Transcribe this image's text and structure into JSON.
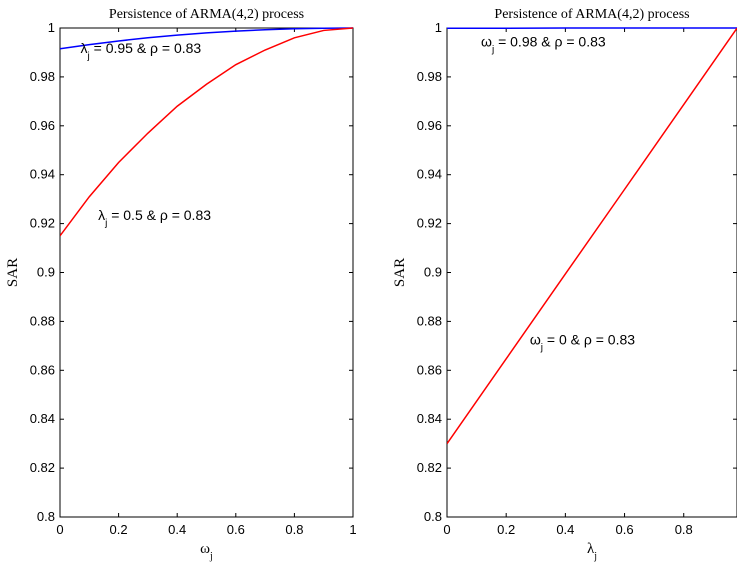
{
  "chart_data": [
    {
      "type": "line",
      "title": "Persistence of ARMA(4,2) process",
      "xlabel": "ω",
      "xlabel_sub": "j",
      "ylabel": "SAR",
      "xlim": [
        0,
        1
      ],
      "ylim": [
        0.8,
        1
      ],
      "xticks": [
        0,
        0.2,
        0.4,
        0.6,
        0.8,
        1
      ],
      "xtick_labels": [
        "0",
        "0.2",
        "0.4",
        "0.6",
        "0.8",
        "1"
      ],
      "yticks": [
        0.8,
        0.82,
        0.84,
        0.86,
        0.88,
        0.9,
        0.92,
        0.94,
        0.96,
        0.98,
        1
      ],
      "ytick_labels": [
        "0.8",
        "0.82",
        "0.84",
        "0.86",
        "0.88",
        "0.9",
        "0.92",
        "0.94",
        "0.96",
        "0.98",
        "1"
      ],
      "grid": false,
      "series": [
        {
          "color": "#0000ff",
          "x": [
            0,
            0.1,
            0.2,
            0.3,
            0.4,
            0.5,
            0.6,
            0.7,
            0.8,
            0.9,
            1
          ],
          "values": [
            0.9915,
            0.9932,
            0.9947,
            0.996,
            0.9971,
            0.998,
            0.9987,
            0.9993,
            0.9997,
            0.9999,
            1
          ]
        },
        {
          "color": "#ff0000",
          "x": [
            0,
            0.1,
            0.2,
            0.3,
            0.4,
            0.5,
            0.6,
            0.7,
            0.8,
            0.9,
            1
          ],
          "values": [
            0.915,
            0.931,
            0.945,
            0.957,
            0.968,
            0.977,
            0.985,
            0.991,
            0.996,
            0.999,
            1
          ]
        }
      ],
      "annotations": [
        {
          "symbol": "λ",
          "sub": "j",
          "text": " = 0.95 & ρ = 0.83",
          "x": 0.07,
          "y": 0.9897
        },
        {
          "symbol": "λ",
          "sub": "j",
          "text": " = 0.5 & ρ = 0.83",
          "x": 0.13,
          "y": 0.9215
        }
      ]
    },
    {
      "type": "line",
      "title": "Persistence of ARMA(4,2) process",
      "xlabel": "λ",
      "xlabel_sub": "j",
      "ylabel": "SAR",
      "xlim": [
        0,
        0.98
      ],
      "ylim": [
        0.8,
        1
      ],
      "xticks": [
        0,
        0.2,
        0.4,
        0.6,
        0.8
      ],
      "xtick_labels": [
        "0",
        "0.2",
        "0.4",
        "0.6",
        "0.8"
      ],
      "yticks": [
        0.8,
        0.82,
        0.84,
        0.86,
        0.88,
        0.9,
        0.92,
        0.94,
        0.96,
        0.98,
        1
      ],
      "ytick_labels": [
        "0.8",
        "0.82",
        "0.84",
        "0.86",
        "0.88",
        "0.9",
        "0.92",
        "0.94",
        "0.96",
        "0.98",
        "1"
      ],
      "grid": false,
      "series": [
        {
          "color": "#0000ff",
          "x": [
            0,
            0.2,
            0.4,
            0.6,
            0.8,
            0.98
          ],
          "values": [
            0.9999,
            0.9999,
            1,
            1,
            1,
            1
          ]
        },
        {
          "color": "#ff0000",
          "x": [
            0,
            0.2,
            0.4,
            0.6,
            0.8,
            0.98
          ],
          "values": [
            0.83,
            0.8647,
            0.8994,
            0.934,
            0.9687,
            0.9999
          ]
        }
      ],
      "annotations": [
        {
          "symbol": "ω",
          "sub": "j",
          "text": " = 0.98 & ρ = 0.83",
          "x": 0.115,
          "y": 0.9924
        },
        {
          "symbol": "ω",
          "sub": "j",
          "text": " = 0 & ρ = 0.83",
          "x": 0.28,
          "y": 0.8706
        }
      ]
    }
  ]
}
